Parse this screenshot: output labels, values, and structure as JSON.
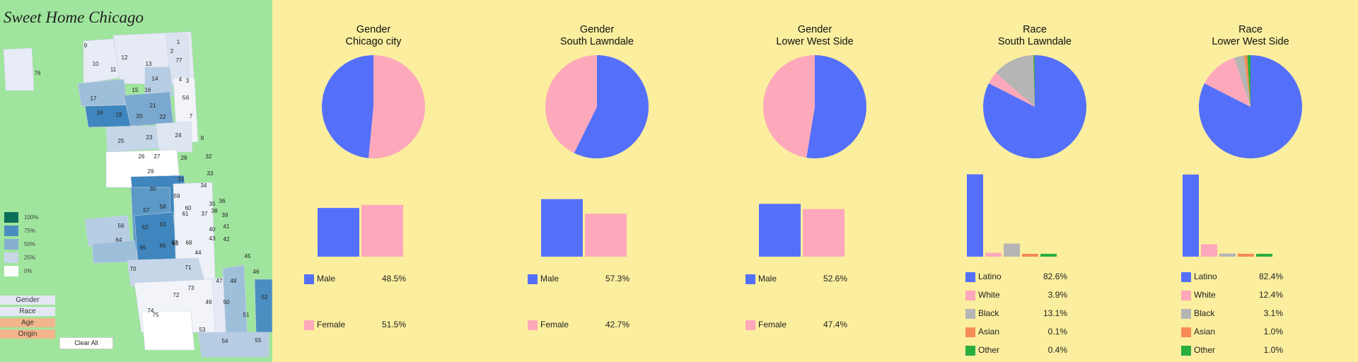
{
  "app_title": "Sweet Home Chicago",
  "sidebar": {
    "legend_scale": [
      {
        "label": "100%",
        "color": "#0b6f57"
      },
      {
        "label": "75%",
        "color": "#4a8ec1"
      },
      {
        "label": "50%",
        "color": "#86afcf"
      },
      {
        "label": "25%",
        "color": "#c8d6e8"
      },
      {
        "label": "0%",
        "color": "#ffffff"
      }
    ],
    "buttons": [
      {
        "label": "Gender",
        "color": "#e4e8f4"
      },
      {
        "label": "Race",
        "color": "#e4e8f4"
      },
      {
        "label": "Age",
        "color": "#f2b48a"
      },
      {
        "label": "Origin",
        "color": "#f2b48a"
      }
    ],
    "clear_label": "Clear All",
    "map_labels": [
      "1",
      "2",
      "3",
      "4",
      "5",
      "6",
      "7",
      "8",
      "9",
      "10",
      "11",
      "12",
      "13",
      "14",
      "15",
      "16",
      "17",
      "18",
      "19",
      "20",
      "21",
      "22",
      "23",
      "24",
      "25",
      "26",
      "27",
      "28",
      "29",
      "30",
      "31",
      "32",
      "33",
      "34",
      "35",
      "36",
      "37",
      "38",
      "39",
      "40",
      "41",
      "42",
      "43",
      "44",
      "45",
      "46",
      "47",
      "48",
      "49",
      "50",
      "51",
      "52",
      "53",
      "54",
      "55",
      "56",
      "57",
      "58",
      "59",
      "60",
      "61",
      "62",
      "63",
      "64",
      "65",
      "66",
      "67",
      "68",
      "69",
      "70",
      "71",
      "72",
      "73",
      "74",
      "75",
      "76",
      "77"
    ]
  },
  "chart_data": [
    {
      "type": "pie+bar",
      "title": [
        "Gender",
        "Chicago city"
      ],
      "categories": [
        "Male",
        "Female"
      ],
      "values": [
        48.5,
        51.5
      ],
      "value_labels": [
        "48.5%",
        "51.5%"
      ],
      "colors": [
        "#5470fb",
        "#fda8bb"
      ]
    },
    {
      "type": "pie+bar",
      "title": [
        "Gender",
        "South Lawndale"
      ],
      "categories": [
        "Male",
        "Female"
      ],
      "values": [
        57.3,
        42.7
      ],
      "value_labels": [
        "57.3%",
        "42.7%"
      ],
      "colors": [
        "#5470fb",
        "#fda8bb"
      ]
    },
    {
      "type": "pie+bar",
      "title": [
        "Gender",
        "Lower West Side"
      ],
      "categories": [
        "Male",
        "Female"
      ],
      "values": [
        52.6,
        47.4
      ],
      "value_labels": [
        "52.6%",
        "47.4%"
      ],
      "colors": [
        "#5470fb",
        "#fda8bb"
      ]
    },
    {
      "type": "pie+bar",
      "title": [
        "Race",
        "South Lawndale"
      ],
      "categories": [
        "Latino",
        "White",
        "Black",
        "Asian",
        "Other"
      ],
      "values": [
        82.6,
        3.9,
        13.1,
        0.1,
        0.4
      ],
      "value_labels": [
        "82.6%",
        "3.9%",
        "13.1%",
        "0.1%",
        "0.4%"
      ],
      "colors": [
        "#5470fb",
        "#fda8bb",
        "#b5b5b5",
        "#f68b55",
        "#27ae3f"
      ]
    },
    {
      "type": "pie+bar",
      "title": [
        "Race",
        "Lower West Side"
      ],
      "categories": [
        "Latino",
        "White",
        "Black",
        "Asian",
        "Other"
      ],
      "values": [
        82.4,
        12.4,
        3.1,
        1.0,
        1.0
      ],
      "value_labels": [
        "82.4%",
        "12.4%",
        "3.1%",
        "1.0%",
        "1.0%"
      ],
      "colors": [
        "#5470fb",
        "#fda8bb",
        "#b5b5b5",
        "#f68b55",
        "#27ae3f"
      ]
    }
  ]
}
